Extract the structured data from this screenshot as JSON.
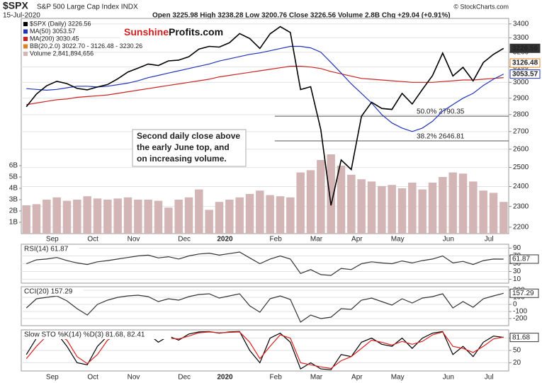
{
  "header": {
    "symbol": "$SPX",
    "name": "S&P 500 Large Cap Index INDX",
    "date": "15-Jul-2020",
    "quote": "Open 3225.98 High 3238.28 Low 3200.76 Close 3226.56 Volume 2.8B Chg +29.04 (+0.91%)",
    "copyright": "© StockCharts.com",
    "brand": [
      "Sunshine",
      "Profits.com"
    ],
    "annotation": [
      "Second daily close above",
      "the early June top, and",
      "on increasing volume."
    ]
  },
  "chart_data": [
    {
      "type": "line",
      "log": true,
      "grid": true,
      "categories": [
        null,
        null,
        "Sep",
        null,
        null,
        null,
        "Oct",
        null,
        null,
        null,
        "Nov",
        null,
        null,
        null,
        null,
        "Dec",
        null,
        null,
        null,
        "2020",
        null,
        null,
        null,
        null,
        "Feb",
        null,
        null,
        null,
        "Mar",
        null,
        null,
        null,
        "Apr",
        null,
        null,
        null,
        "May",
        null,
        null,
        null,
        null,
        "Jun",
        null,
        null,
        null,
        "Jul",
        null,
        null
      ],
      "ylim": [
        2170,
        3440
      ],
      "yticks": [
        2200,
        2300,
        2400,
        2500,
        2600,
        2700,
        2800,
        2900,
        3000,
        3100,
        3200,
        3300,
        3400
      ],
      "y2lim": [
        0,
        19
      ],
      "y2ticks": [
        {
          "value": 1,
          "label": "1B"
        },
        {
          "value": 2,
          "label": "2B"
        },
        {
          "value": 3,
          "label": "3B"
        },
        {
          "value": 4,
          "label": "4B"
        },
        {
          "value": 5,
          "label": "5B"
        },
        {
          "value": 6,
          "label": "6B"
        }
      ],
      "series": [
        {
          "name": "Volume 2,841,894,656",
          "type": "bar",
          "axis": "y2",
          "color": "#d4b5b5",
          "values": [
            2.5,
            2.6,
            3.0,
            3.2,
            2.9,
            3.0,
            3.3,
            3.1,
            3.0,
            3.1,
            3.2,
            3.0,
            3.0,
            2.9,
            2.3,
            3.0,
            3.2,
            3.9,
            2.1,
            2.8,
            3.0,
            3.2,
            3.5,
            3.8,
            3.4,
            3.3,
            3.2,
            5.4,
            5.6,
            6.5,
            7.0,
            6.0,
            5.2,
            4.8,
            4.6,
            4.2,
            4.3,
            4.0,
            4.5,
            3.9,
            4.5,
            5.0,
            5.4,
            5.3,
            4.6,
            3.8,
            3.6,
            2.8
          ]
        },
        {
          "name": "MA(200) 3030.45",
          "color": "#cc2222",
          "values": [
            2860,
            2870,
            2880,
            2890,
            2895,
            2905,
            2910,
            2915,
            2920,
            2930,
            2940,
            2950,
            2960,
            2970,
            2980,
            2990,
            3000,
            3010,
            3020,
            3035,
            3045,
            3055,
            3065,
            3075,
            3085,
            3095,
            3105,
            3105,
            3100,
            3090,
            3070,
            3055,
            3040,
            3025,
            3020,
            3015,
            3010,
            3005,
            3000,
            3000,
            3000,
            3005,
            3010,
            3015,
            3015,
            3020,
            3025,
            3030.45
          ]
        },
        {
          "name": "MA(50) 3053.57",
          "color": "#2233bb",
          "values": [
            2960,
            2955,
            2950,
            2955,
            2965,
            2975,
            2975,
            2970,
            2975,
            2985,
            2995,
            3010,
            3030,
            3045,
            3060,
            3075,
            3090,
            3105,
            3120,
            3140,
            3155,
            3170,
            3185,
            3195,
            3210,
            3225,
            3240,
            3240,
            3230,
            3200,
            3130,
            3060,
            2990,
            2930,
            2870,
            2800,
            2750,
            2720,
            2700,
            2720,
            2760,
            2820,
            2860,
            2900,
            2930,
            2980,
            3020,
            3053.57
          ]
        },
        {
          "name": "$SPX (Daily) 3226.56",
          "color": "#000000",
          "values": [
            2847,
            2926,
            2978,
            3007,
            2992,
            2961,
            2952,
            2970,
            2986,
            3023,
            3067,
            3093,
            3120,
            3110,
            3141,
            3146,
            3169,
            3221,
            3240,
            3235,
            3265,
            3330,
            3295,
            3226,
            3328,
            3380,
            3338,
            2954,
            2972,
            2711,
            2305,
            2541,
            2489,
            2790,
            2875,
            2837,
            2831,
            2930,
            2864,
            2955,
            3044,
            3194,
            3041,
            3098,
            3009,
            3130,
            3185,
            3226.56
          ]
        }
      ],
      "legend_extra": {
        "name": "BB(20,2.0) 3022.70 - 3126.48 - 3230.26",
        "color": "#e08020"
      },
      "fib": [
        {
          "value": 2790.35,
          "label": "50.0% 2790.35"
        },
        {
          "value": 2646.81,
          "label": "38.2% 2646.81"
        }
      ],
      "badges": [
        {
          "value": 3226.56,
          "color": "#333333"
        },
        {
          "value": 3126.48,
          "color": "#e08020"
        },
        {
          "value": 3053.57,
          "color": "#2233bb"
        }
      ]
    },
    {
      "type": "line",
      "title": "RSI(14) 61.87",
      "ylim": [
        0,
        100
      ],
      "yticks": [
        10,
        30,
        50,
        70,
        90
      ],
      "grid": true,
      "series": [
        {
          "color": "#333333",
          "values": [
            50,
            60,
            62,
            66,
            58,
            52,
            48,
            55,
            58,
            62,
            66,
            70,
            72,
            65,
            68,
            62,
            70,
            75,
            77,
            72,
            76,
            80,
            65,
            50,
            62,
            70,
            62,
            25,
            35,
            22,
            20,
            38,
            35,
            50,
            55,
            52,
            50,
            57,
            52,
            58,
            62,
            70,
            52,
            56,
            48,
            58,
            62,
            61.87
          ]
        }
      ]
    },
    {
      "type": "line",
      "title": "CCI(20) 157.29",
      "ylim": [
        -300,
        250
      ],
      "yticks": [
        -200,
        -100,
        0,
        100,
        200
      ],
      "grid": true,
      "series": [
        {
          "color": "#333333",
          "values": [
            -50,
            80,
            100,
            120,
            50,
            -60,
            -150,
            0,
            60,
            100,
            120,
            130,
            110,
            40,
            80,
            60,
            110,
            140,
            150,
            90,
            120,
            150,
            -20,
            -110,
            80,
            120,
            70,
            -250,
            -150,
            -200,
            -180,
            -60,
            -70,
            60,
            90,
            40,
            -10,
            80,
            20,
            90,
            110,
            150,
            -50,
            40,
            -40,
            80,
            120,
            157.29
          ]
        }
      ]
    },
    {
      "type": "line",
      "title": "Slow STO %K(14) %D(3) 81.68, 82.41",
      "ylim": [
        0,
        100
      ],
      "yticks": [
        20,
        50,
        80
      ],
      "grid": true,
      "categories": [
        null,
        null,
        "Sep",
        null,
        null,
        null,
        "Oct",
        null,
        null,
        null,
        "Nov",
        null,
        null,
        null,
        null,
        "Dec",
        null,
        null,
        null,
        "2020",
        null,
        null,
        null,
        null,
        "Feb",
        null,
        null,
        null,
        "Mar",
        null,
        null,
        null,
        "Apr",
        null,
        null,
        null,
        "May",
        null,
        null,
        null,
        null,
        "Jun",
        null,
        null,
        null,
        "Jul",
        null,
        null
      ],
      "series": [
        {
          "color": "#000000",
          "values": [
            40,
            80,
            90,
            92,
            60,
            20,
            15,
            60,
            85,
            92,
            95,
            96,
            90,
            70,
            85,
            75,
            90,
            95,
            96,
            92,
            95,
            96,
            50,
            20,
            80,
            92,
            70,
            5,
            20,
            5,
            3,
            40,
            35,
            70,
            80,
            65,
            60,
            80,
            55,
            80,
            92,
            96,
            40,
            60,
            35,
            70,
            85,
            81.68
          ]
        },
        {
          "color": "#dd2222",
          "values": [
            30,
            60,
            85,
            90,
            75,
            35,
            18,
            40,
            75,
            90,
            94,
            95,
            92,
            80,
            80,
            78,
            85,
            93,
            95,
            93,
            94,
            95,
            70,
            30,
            60,
            88,
            80,
            20,
            15,
            10,
            6,
            25,
            35,
            55,
            75,
            70,
            63,
            72,
            65,
            72,
            88,
            95,
            60,
            55,
            45,
            60,
            78,
            82.41
          ]
        }
      ]
    }
  ]
}
